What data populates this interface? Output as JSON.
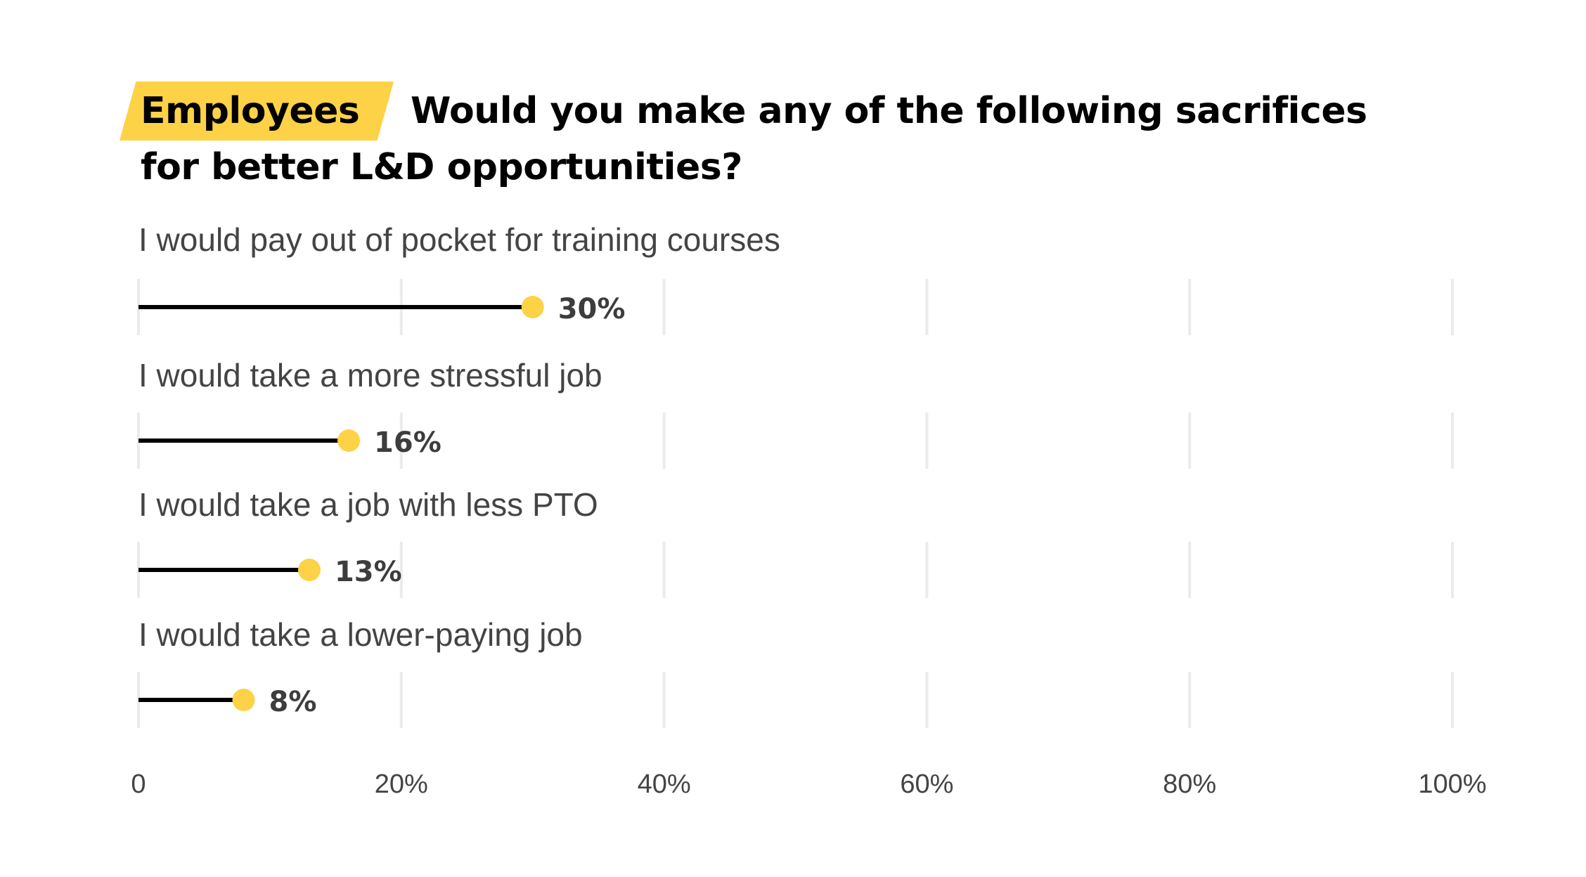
{
  "header": {
    "tag_label": "Employees",
    "question_line1": "Would you make any of the following sacrifices",
    "question_line2": "for better L&D opportunities?"
  },
  "colors": {
    "accent": "#fed246",
    "line": "#000000",
    "grid": "#ebebeb",
    "label_text": "#444444",
    "value_text": "#3d3d3d"
  },
  "chart_data": {
    "type": "lollipop",
    "categories": [
      "I would pay out of pocket for training courses",
      "I would take a more stressful job",
      "I would take a job with less PTO",
      "I would take a lower-paying job"
    ],
    "values": [
      30,
      16,
      13,
      8
    ],
    "value_labels": [
      "30%",
      "16%",
      "13%",
      "8%"
    ],
    "xlim": [
      0,
      100
    ],
    "x_ticks": [
      0,
      20,
      40,
      60,
      80,
      100
    ],
    "x_tick_labels": [
      "0",
      "20%",
      "40%",
      "60%",
      "80%",
      "100%"
    ],
    "grid": true
  }
}
